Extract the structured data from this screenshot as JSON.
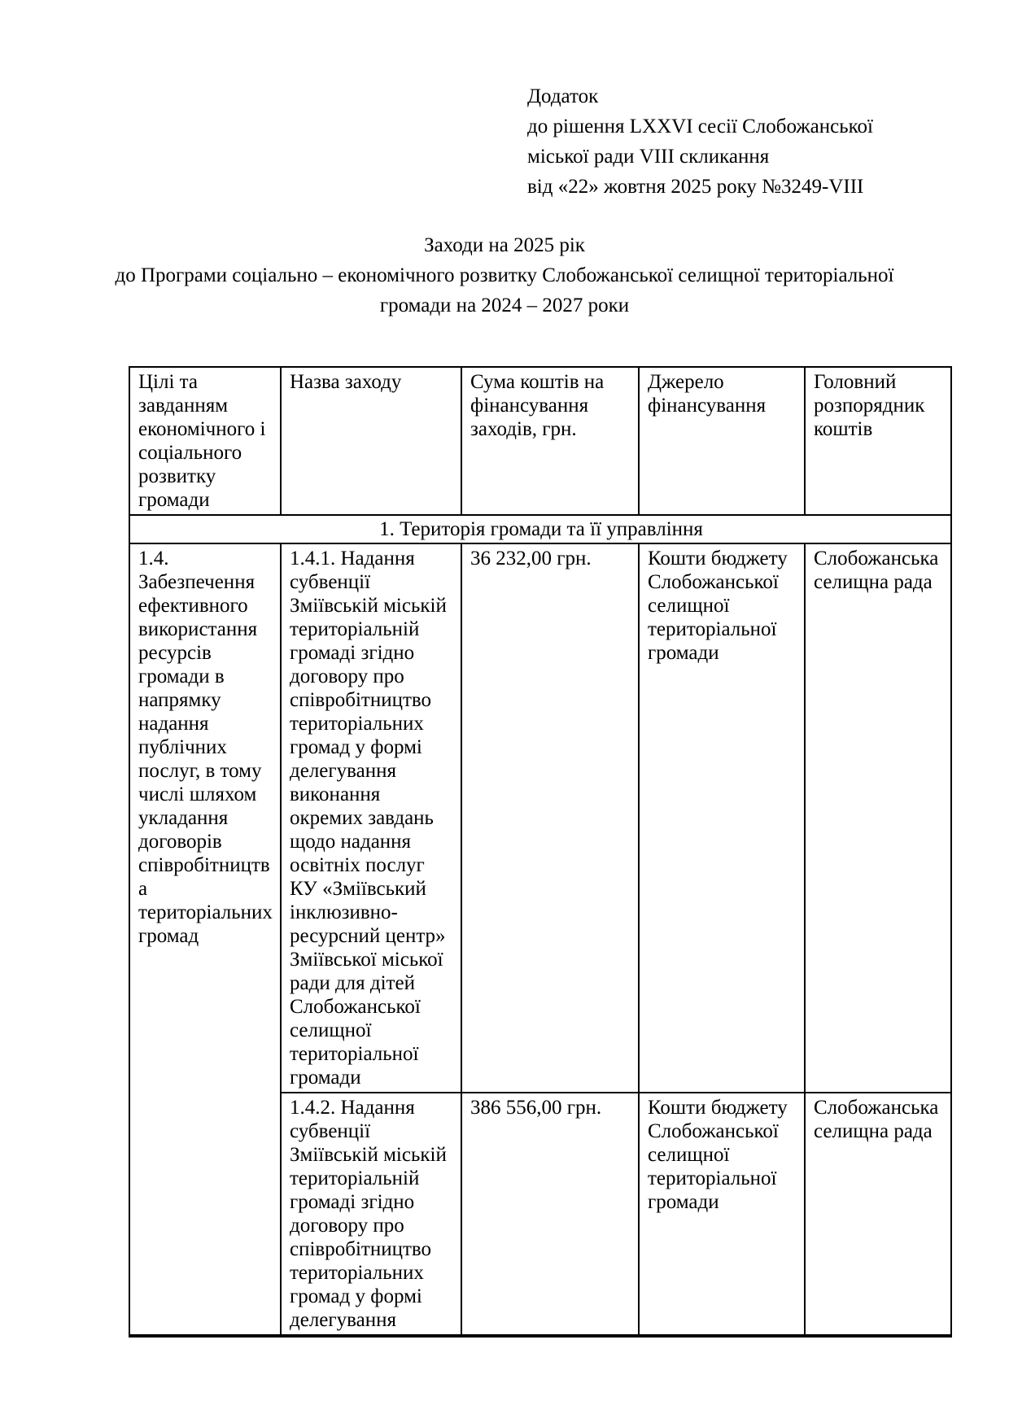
{
  "page": {
    "annex_lines": [
      "Додаток",
      "до рішення LXXVI сесії Слобожанської",
      "міської ради VIII скликання",
      "від «22» жовтня 2025 року №3249-VIII"
    ],
    "title_line1": "Заходи на 2025 рік",
    "title_line2": "до Програми соціально – економічного розвитку Слобожанської селищної територіальної громади на 2024 – 2027 роки"
  },
  "table": {
    "headers": [
      "Цілі та завданням економічного і соціального розвитку громади",
      "Назва заходу",
      "Сума коштів на фінансування заходів, грн.",
      "Джерело фінансування",
      "Головний розпорядник коштів"
    ],
    "section_title": "1. Територія громади та її управління",
    "goal": "1.4. Забезпечення ефективного використання ресурсів громади в напрямку надання публічних послуг, в тому числі шляхом укладання договорів співробітництва територіальних громад",
    "rows": [
      {
        "measure": "1.4.1. Надання субвенції Зміївській міській територіальній громаді згідно договору про співробітництво територіальних громад у формі делегування виконання окремих завдань щодо надання освітніх послуг КУ «Зміївський інклюзивно-ресурсний центр» Зміївської міської ради для дітей Слобожанської селищної територіальної громади",
        "amount": "36 232,00 грн.",
        "source": "Кошти бюджету Слобожанської селищної територіальної громади",
        "manager": "Слобожанська селищна рада"
      },
      {
        "measure": "1.4.2. Надання субвенції Зміївській міській територіальній громаді згідно договору про співробітництво територіальних громад у формі делегування",
        "amount": "386 556,00 грн.",
        "source": "Кошти бюджету Слобожанської селищної територіальної громади",
        "manager": "Слобожанська селищна рада"
      }
    ]
  }
}
